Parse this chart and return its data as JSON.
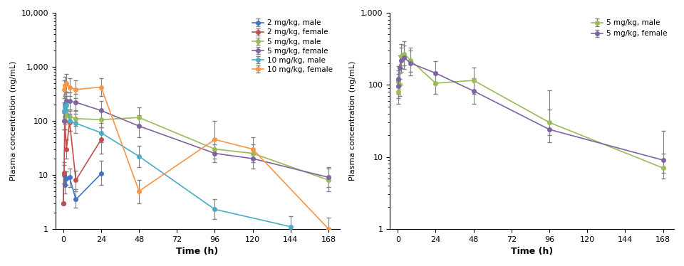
{
  "left_plot": {
    "title": "",
    "ylabel": "Plasma concentration (ng/mL)",
    "xlabel": "Time (h)",
    "xlim": [
      -5,
      175
    ],
    "ylim_log": [
      1,
      10000
    ],
    "xticks": [
      0,
      24,
      48,
      72,
      96,
      120,
      144,
      168
    ],
    "series": {
      "2mg_male": {
        "label": "2 mg/kg, male",
        "color": "#4472C4",
        "x": [
          0,
          0.5,
          1,
          2,
          4,
          8,
          24,
          48,
          96,
          168
        ],
        "y": [
          3.0,
          10.0,
          6.5,
          8.5,
          9.0,
          3.5,
          10.5,
          null,
          null,
          null
        ],
        "yerr_lo": [
          0,
          3,
          2,
          2,
          3,
          1,
          4,
          null,
          null,
          null
        ],
        "yerr_hi": [
          0,
          5,
          3,
          3,
          4,
          2,
          8,
          null,
          null,
          null
        ]
      },
      "2mg_female": {
        "label": "2 mg/kg, female",
        "color": "#C0504D",
        "x": [
          0,
          0.5,
          1,
          2,
          4,
          8,
          24,
          48,
          96,
          168
        ],
        "y": [
          3.0,
          11.0,
          100.0,
          30.0,
          95.0,
          8.0,
          45.0,
          null,
          null,
          null
        ],
        "yerr_lo": [
          0,
          4,
          30,
          10,
          30,
          3,
          20,
          null,
          null,
          null
        ],
        "yerr_hi": [
          0,
          6,
          50,
          15,
          40,
          4,
          30,
          null,
          null,
          null
        ]
      },
      "5mg_male": {
        "label": "5 mg/kg, male",
        "color": "#9BBB59",
        "x": [
          0,
          0.5,
          1,
          2,
          4,
          8,
          24,
          48,
          96,
          120,
          168
        ],
        "y": [
          null,
          100.0,
          120.0,
          130.0,
          120.0,
          110.0,
          105.0,
          115.0,
          30.0,
          25.0,
          8.0
        ],
        "yerr_lo": [
          null,
          30,
          35,
          35,
          30,
          30,
          30,
          40,
          10,
          8,
          3
        ],
        "yerr_hi": [
          null,
          40,
          50,
          50,
          40,
          40,
          45,
          60,
          15,
          12,
          5
        ]
      },
      "5mg_female": {
        "label": "5 mg/kg, female",
        "color": "#8064A2",
        "x": [
          0,
          0.5,
          1,
          2,
          4,
          8,
          24,
          48,
          96,
          120,
          168
        ],
        "y": [
          null,
          100.0,
          200.0,
          230.0,
          230.0,
          220.0,
          155.0,
          80.0,
          25.0,
          20.0,
          9.0
        ],
        "yerr_lo": [
          null,
          30,
          60,
          70,
          70,
          65,
          50,
          30,
          8,
          7,
          3
        ],
        "yerr_hi": [
          null,
          45,
          90,
          100,
          100,
          95,
          75,
          45,
          12,
          10,
          5
        ]
      },
      "10mg_male": {
        "label": "10 mg/kg, male",
        "color": "#4BACC6",
        "x": [
          0,
          0.5,
          1,
          2,
          4,
          8,
          24,
          48,
          96,
          120,
          144,
          168
        ],
        "y": [
          null,
          150.0,
          180.0,
          200.0,
          100.0,
          90.0,
          60.0,
          22.0,
          2.3,
          null,
          1.1,
          null
        ],
        "yerr_lo": [
          null,
          50,
          60,
          65,
          35,
          30,
          20,
          8,
          0.8,
          null,
          0.4,
          null
        ],
        "yerr_hi": [
          null,
          70,
          85,
          90,
          50,
          45,
          30,
          12,
          1.2,
          null,
          0.6,
          null
        ]
      },
      "10mg_female": {
        "label": "10 mg/kg, female",
        "color": "#F79646",
        "x": [
          0,
          0.5,
          1,
          2,
          4,
          8,
          24,
          48,
          96,
          120,
          144,
          168
        ],
        "y": [
          null,
          380.0,
          450.0,
          500.0,
          420.0,
          380.0,
          420.0,
          5.0,
          45.0,
          30.0,
          null,
          1.0
        ],
        "yerr_lo": [
          null,
          120,
          140,
          160,
          130,
          120,
          130,
          2,
          15,
          10,
          null,
          0.4
        ],
        "yerr_hi": [
          null,
          180,
          210,
          240,
          200,
          180,
          200,
          3,
          55,
          20,
          null,
          0.6
        ]
      }
    }
  },
  "right_plot": {
    "title": "",
    "ylabel": "Plasma concentration (ng/mL)",
    "xlabel": "Time (h)",
    "xlim": [
      -5,
      175
    ],
    "ylim_log": [
      1,
      1000
    ],
    "xticks": [
      0,
      24,
      48,
      72,
      96,
      120,
      144,
      168
    ],
    "series": {
      "5mg_male": {
        "label": "5 mg/kg, male",
        "color": "#9BBB59",
        "x": [
          0.25,
          0.5,
          1,
          2,
          4,
          8,
          24,
          48,
          96,
          168
        ],
        "y": [
          110.0,
          80.0,
          100.0,
          250.0,
          270.0,
          220.0,
          105.0,
          115.0,
          30.0,
          7.0
        ],
        "yerr_lo": [
          35,
          25,
          30,
          80,
          85,
          70,
          30,
          40,
          10,
          2
        ],
        "yerr_hi": [
          50,
          35,
          45,
          120,
          130,
          105,
          45,
          60,
          15,
          4
        ]
      },
      "5mg_female": {
        "label": "5 mg/kg, female",
        "color": "#8064A2",
        "x": [
          0.25,
          0.5,
          1,
          2,
          4,
          8,
          24,
          48,
          96,
          168
        ],
        "y": [
          95.0,
          120.0,
          175.0,
          220.0,
          240.0,
          200.0,
          145.0,
          82.0,
          24.0,
          9.0
        ],
        "yerr_lo": [
          30,
          40,
          55,
          70,
          75,
          65,
          45,
          28,
          8,
          3
        ],
        "yerr_hi": [
          45,
          60,
          82,
          105,
          112,
          98,
          68,
          42,
          60,
          14
        ]
      }
    }
  }
}
